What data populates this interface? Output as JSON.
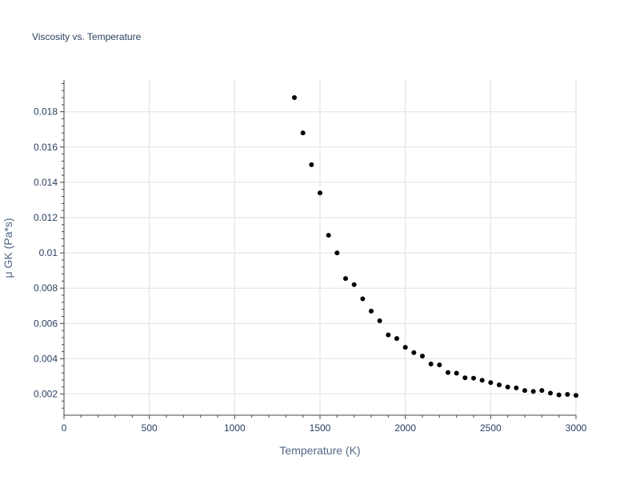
{
  "chart_data": {
    "type": "scatter",
    "title": "Viscosity vs. Temperature",
    "xlabel": "Temperature (K)",
    "ylabel": "μ GK (Pa*s)",
    "xlim": [
      0,
      3000
    ],
    "ylim": [
      0.0008,
      0.0198
    ],
    "x_ticks": [
      0,
      500,
      1000,
      1500,
      2000,
      2500,
      3000
    ],
    "x_tick_labels": [
      "0",
      "500",
      "1000",
      "1500",
      "2000",
      "2500",
      "3000"
    ],
    "y_ticks": [
      0.002,
      0.004,
      0.006,
      0.008,
      0.01,
      0.012,
      0.014,
      0.016,
      0.018
    ],
    "y_tick_labels": [
      "0.002",
      "0.004",
      "0.006",
      "0.008",
      "0.01",
      "0.012",
      "0.014",
      "0.016",
      "0.018"
    ],
    "grid": true,
    "marker_color": "#000000",
    "x": [
      1350,
      1400,
      1450,
      1500,
      1550,
      1600,
      1650,
      1700,
      1750,
      1800,
      1850,
      1900,
      1950,
      2000,
      2050,
      2100,
      2150,
      2200,
      2250,
      2300,
      2350,
      2400,
      2450,
      2500,
      2550,
      2600,
      2650,
      2700,
      2750,
      2800,
      2850,
      2900,
      2950,
      3000
    ],
    "y": [
      0.0188,
      0.0168,
      0.015,
      0.0134,
      0.011,
      0.01,
      0.00855,
      0.0082,
      0.0074,
      0.0067,
      0.00615,
      0.00535,
      0.00515,
      0.00465,
      0.00435,
      0.00415,
      0.0037,
      0.00365,
      0.00322,
      0.00318,
      0.00292,
      0.0029,
      0.00278,
      0.00265,
      0.00252,
      0.0024,
      0.00235,
      0.0022,
      0.00215,
      0.0022,
      0.00205,
      0.00195,
      0.00198,
      0.00192
    ]
  }
}
